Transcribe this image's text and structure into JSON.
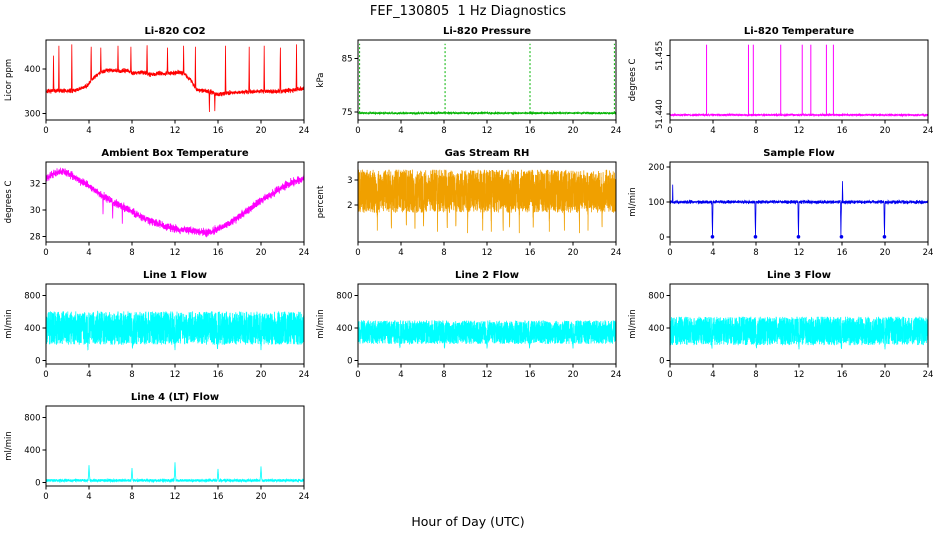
{
  "page_title": "FEF_130805  1 Hz Diagnostics",
  "x_axis_label": "Hour of Day (UTC)",
  "chart_data": [
    {
      "type": "line",
      "title": "Li-820 CO2",
      "ylabel": "Licor ppm",
      "color": "#FF0000",
      "xlim": [
        0,
        24
      ],
      "xticks": [
        0,
        4,
        8,
        12,
        16,
        20,
        24
      ],
      "ylim": [
        285,
        465
      ],
      "yticks": [
        300,
        400
      ],
      "ytick_labels": [
        "300",
        "400"
      ],
      "ytick_rotated": false,
      "model": {
        "kind": "noisy",
        "n": 2400,
        "noise": 7,
        "noise_kind": "gauss",
        "keypoints": [
          [
            0,
            349
          ],
          [
            1,
            351
          ],
          [
            2,
            350
          ],
          [
            3,
            353
          ],
          [
            3.8,
            362
          ],
          [
            4.5,
            382
          ],
          [
            5,
            391
          ],
          [
            5.5,
            396
          ],
          [
            6,
            398
          ],
          [
            7,
            394
          ],
          [
            7.5,
            398
          ],
          [
            8,
            391
          ],
          [
            9,
            392
          ],
          [
            10,
            387
          ],
          [
            10.5,
            391
          ],
          [
            11,
            389
          ],
          [
            12,
            391
          ],
          [
            12.5,
            393
          ],
          [
            13,
            386
          ],
          [
            13.5,
            374
          ],
          [
            14,
            353
          ],
          [
            15,
            350
          ],
          [
            15.5,
            347
          ],
          [
            16,
            343
          ],
          [
            17,
            346
          ],
          [
            18,
            347
          ],
          [
            19,
            349
          ],
          [
            20,
            350
          ],
          [
            21,
            349
          ],
          [
            22,
            350
          ],
          [
            23,
            352
          ],
          [
            24,
            356
          ]
        ],
        "spikes": [
          {
            "x": 0.7,
            "y": 430,
            "w": 0.04
          },
          {
            "x": 1.2,
            "y": 452,
            "w": 0.04
          },
          {
            "x": 2.4,
            "y": 455,
            "w": 0.04
          },
          {
            "x": 4.2,
            "y": 450,
            "w": 0.04
          },
          {
            "x": 5.1,
            "y": 448,
            "w": 0.04
          },
          {
            "x": 6.7,
            "y": 452,
            "w": 0.04
          },
          {
            "x": 7.9,
            "y": 450,
            "w": 0.04
          },
          {
            "x": 9.4,
            "y": 453,
            "w": 0.04
          },
          {
            "x": 11.3,
            "y": 448,
            "w": 0.04
          },
          {
            "x": 12.8,
            "y": 452,
            "w": 0.04
          },
          {
            "x": 13.9,
            "y": 450,
            "w": 0.04
          },
          {
            "x": 15.2,
            "y": 303,
            "w": 0.04
          },
          {
            "x": 15.7,
            "y": 305,
            "w": 0.04
          },
          {
            "x": 16.7,
            "y": 452,
            "w": 0.04
          },
          {
            "x": 18.9,
            "y": 450,
            "w": 0.04
          },
          {
            "x": 20.3,
            "y": 452,
            "w": 0.04
          },
          {
            "x": 21.8,
            "y": 448,
            "w": 0.04
          },
          {
            "x": 23.3,
            "y": 455,
            "w": 0.04
          }
        ]
      }
    },
    {
      "type": "line",
      "title": "Li-820 Pressure",
      "ylabel": "kPa",
      "color": "#00B400",
      "xlim": [
        0,
        24
      ],
      "xticks": [
        0,
        4,
        8,
        12,
        16,
        20,
        24
      ],
      "ylim": [
        73.5,
        88.5
      ],
      "yticks": [
        75,
        85
      ],
      "ytick_labels": [
        "75",
        "85"
      ],
      "ytick_rotated": false,
      "model": {
        "kind": "flat-spikes",
        "n": 2400,
        "baseline": 74.8,
        "noise": 0.25,
        "dash": true,
        "spike_lines": [
          {
            "x": 0.15,
            "y": 87.8
          },
          {
            "x": 8.1,
            "y": 87.8
          },
          {
            "x": 16.0,
            "y": 87.8
          },
          {
            "x": 23.85,
            "y": 87.8
          }
        ]
      }
    },
    {
      "type": "line",
      "title": "Li-820 Temperature",
      "ylabel": "degrees C",
      "color": "#FF00FF",
      "xlim": [
        0,
        24
      ],
      "xticks": [
        0,
        4,
        8,
        12,
        16,
        20,
        24
      ],
      "ylim": [
        51.4385,
        51.459
      ],
      "yticks": [
        51.44,
        51.455
      ],
      "ytick_labels": [
        "51.440",
        "51.455"
      ],
      "ytick_rotated": true,
      "model": {
        "kind": "flat-spikes",
        "n": 2400,
        "baseline": 51.4398,
        "noise": 0.0004,
        "dash": false,
        "spike_lines": [
          {
            "x": 3.4,
            "y": 51.4578
          },
          {
            "x": 7.3,
            "y": 51.4578
          },
          {
            "x": 7.75,
            "y": 51.4578
          },
          {
            "x": 10.3,
            "y": 51.4578
          },
          {
            "x": 12.3,
            "y": 51.4578
          },
          {
            "x": 13.1,
            "y": 51.4578
          },
          {
            "x": 14.55,
            "y": 51.4578
          },
          {
            "x": 15.2,
            "y": 51.4578
          }
        ]
      }
    },
    {
      "type": "line",
      "title": "Ambient Box Temperature",
      "ylabel": "degrees C",
      "color": "#FF00FF",
      "xlim": [
        0,
        24
      ],
      "xticks": [
        0,
        4,
        8,
        12,
        16,
        20,
        24
      ],
      "ylim": [
        27.6,
        33.6
      ],
      "yticks": [
        28,
        30,
        32
      ],
      "ytick_labels": [
        "28",
        "30",
        "32"
      ],
      "ytick_rotated": false,
      "model": {
        "kind": "noisy",
        "n": 2600,
        "noise": 0.42,
        "noise_kind": "gauss",
        "keypoints": [
          [
            0,
            32.3
          ],
          [
            0.5,
            32.6
          ],
          [
            1,
            32.8
          ],
          [
            1.5,
            32.9
          ],
          [
            2,
            32.8
          ],
          [
            3,
            32.3
          ],
          [
            4,
            31.8
          ],
          [
            5,
            31.2
          ],
          [
            6,
            30.7
          ],
          [
            7,
            30.3
          ],
          [
            8,
            29.9
          ],
          [
            9,
            29.4
          ],
          [
            10,
            29.1
          ],
          [
            11,
            28.8
          ],
          [
            12,
            28.6
          ],
          [
            13,
            28.5
          ],
          [
            14,
            28.4
          ],
          [
            15,
            28.3
          ],
          [
            15.5,
            28.4
          ],
          [
            16,
            28.6
          ],
          [
            17,
            29.0
          ],
          [
            18,
            29.5
          ],
          [
            19,
            30.1
          ],
          [
            20,
            30.7
          ],
          [
            21,
            31.2
          ],
          [
            22,
            31.7
          ],
          [
            23,
            32.1
          ],
          [
            24,
            32.4
          ]
        ],
        "spikes": [
          {
            "x": 5.3,
            "y": 29.6,
            "w": 0.03
          },
          {
            "x": 6.2,
            "y": 29.2,
            "w": 0.03
          },
          {
            "x": 7.1,
            "y": 28.9,
            "w": 0.03
          }
        ]
      }
    },
    {
      "type": "line",
      "title": "Gas Stream RH",
      "ylabel": "percent",
      "color": "#F0A000",
      "xlim": [
        0,
        24
      ],
      "xticks": [
        0,
        4,
        8,
        12,
        16,
        20,
        24
      ],
      "ylim": [
        0.55,
        3.7
      ],
      "yticks": [
        2,
        3
      ],
      "ytick_labels": [
        "2",
        "3"
      ],
      "ytick_rotated": false,
      "model": {
        "kind": "noisy",
        "n": 3000,
        "noise": 0.85,
        "noise_kind": "uniform",
        "keypoints": [
          [
            0,
            2.55
          ],
          [
            24,
            2.55
          ]
        ],
        "spikes": [
          {
            "x": 1.8,
            "y": 1.0,
            "w": 0.03
          },
          {
            "x": 3.1,
            "y": 0.95,
            "w": 0.03
          },
          {
            "x": 4.5,
            "y": 1.0,
            "w": 0.03
          },
          {
            "x": 5.3,
            "y": 0.9,
            "w": 0.03
          },
          {
            "x": 6.1,
            "y": 1.0,
            "w": 0.03
          },
          {
            "x": 7.4,
            "y": 0.95,
            "w": 0.03
          },
          {
            "x": 8.3,
            "y": 0.85,
            "w": 0.03
          },
          {
            "x": 9.1,
            "y": 1.0,
            "w": 0.03
          },
          {
            "x": 10.2,
            "y": 0.9,
            "w": 0.03
          },
          {
            "x": 11.6,
            "y": 1.0,
            "w": 0.03
          },
          {
            "x": 12.4,
            "y": 0.95,
            "w": 0.03
          },
          {
            "x": 13.5,
            "y": 0.85,
            "w": 0.03
          },
          {
            "x": 14.1,
            "y": 1.0,
            "w": 0.03
          },
          {
            "x": 15.0,
            "y": 0.9,
            "w": 0.03
          },
          {
            "x": 16.3,
            "y": 1.0,
            "w": 0.03
          },
          {
            "x": 17.8,
            "y": 0.95,
            "w": 0.03
          },
          {
            "x": 19.2,
            "y": 1.0,
            "w": 0.03
          },
          {
            "x": 20.6,
            "y": 0.9,
            "w": 0.03
          },
          {
            "x": 21.4,
            "y": 1.0,
            "w": 0.03
          },
          {
            "x": 22.7,
            "y": 0.95,
            "w": 0.03
          }
        ]
      }
    },
    {
      "type": "line",
      "title": "Sample Flow",
      "ylabel": "ml/min",
      "color": "#0000EE",
      "xlim": [
        0,
        24
      ],
      "xticks": [
        0,
        4,
        8,
        12,
        16,
        20,
        24
      ],
      "ylim": [
        -15,
        215
      ],
      "yticks": [
        0,
        100,
        200
      ],
      "ytick_labels": [
        "0",
        "100",
        "200"
      ],
      "ytick_rotated": false,
      "model": {
        "kind": "noisy",
        "n": 2400,
        "noise": 7,
        "noise_kind": "gauss",
        "keypoints": [
          [
            0,
            100
          ],
          [
            24,
            100
          ]
        ],
        "spikes": [
          {
            "x": 0.25,
            "y": 150,
            "w": 0.03
          },
          {
            "x": 3.95,
            "y": -2,
            "w": 0.05
          },
          {
            "x": 7.95,
            "y": -2,
            "w": 0.05
          },
          {
            "x": 11.95,
            "y": -2,
            "w": 0.05
          },
          {
            "x": 15.9,
            "y": -2,
            "w": 0.05
          },
          {
            "x": 16.05,
            "y": 160,
            "w": 0.03
          },
          {
            "x": 19.95,
            "y": -2,
            "w": 0.05
          }
        ],
        "zero_markers": [
          3.95,
          7.95,
          11.95,
          15.95,
          19.95
        ]
      }
    },
    {
      "type": "line",
      "title": "Line 1 Flow",
      "ylabel": "ml/min",
      "color": "#00FFFF",
      "xlim": [
        0,
        24
      ],
      "xticks": [
        0,
        4,
        8,
        12,
        16,
        20,
        24
      ],
      "ylim": [
        -40,
        940
      ],
      "yticks": [
        0,
        400,
        800
      ],
      "ytick_labels": [
        "0",
        "400",
        "800"
      ],
      "ytick_rotated": false,
      "model": {
        "kind": "noisy",
        "n": 3000,
        "noise": 205,
        "noise_kind": "uniform",
        "keypoints": [
          [
            0,
            400
          ],
          [
            24,
            400
          ]
        ],
        "spikes": [
          {
            "x": 3.9,
            "y": 130,
            "w": 0.06
          },
          {
            "x": 8.05,
            "y": 140,
            "w": 0.06
          },
          {
            "x": 12.0,
            "y": 130,
            "w": 0.06
          },
          {
            "x": 15.95,
            "y": 140,
            "w": 0.06
          },
          {
            "x": 20.0,
            "y": 130,
            "w": 0.06
          }
        ]
      }
    },
    {
      "type": "line",
      "title": "Line 2 Flow",
      "ylabel": "ml/min",
      "color": "#00FFFF",
      "xlim": [
        0,
        24
      ],
      "xticks": [
        0,
        4,
        8,
        12,
        16,
        20,
        24
      ],
      "ylim": [
        -40,
        940
      ],
      "yticks": [
        0,
        400,
        800
      ],
      "ytick_labels": [
        "0",
        "400",
        "800"
      ],
      "ytick_rotated": false,
      "model": {
        "kind": "noisy",
        "n": 3000,
        "noise": 145,
        "noise_kind": "uniform",
        "keypoints": [
          [
            0,
            350
          ],
          [
            24,
            350
          ]
        ],
        "spikes": [
          {
            "x": 3.9,
            "y": 150,
            "w": 0.06
          },
          {
            "x": 8.05,
            "y": 150,
            "w": 0.06
          },
          {
            "x": 12.0,
            "y": 150,
            "w": 0.06
          },
          {
            "x": 15.95,
            "y": 150,
            "w": 0.06
          },
          {
            "x": 20.0,
            "y": 150,
            "w": 0.06
          }
        ]
      }
    },
    {
      "type": "line",
      "title": "Line 3 Flow",
      "ylabel": "ml/min",
      "color": "#00FFFF",
      "xlim": [
        0,
        24
      ],
      "xticks": [
        0,
        4,
        8,
        12,
        16,
        20,
        24
      ],
      "ylim": [
        -40,
        940
      ],
      "yticks": [
        0,
        400,
        800
      ],
      "ytick_labels": [
        "0",
        "400",
        "800"
      ],
      "ytick_rotated": false,
      "model": {
        "kind": "noisy",
        "n": 3000,
        "noise": 175,
        "noise_kind": "uniform",
        "keypoints": [
          [
            0,
            365
          ],
          [
            24,
            365
          ]
        ],
        "spikes": [
          {
            "x": 3.9,
            "y": 140,
            "w": 0.06
          },
          {
            "x": 8.05,
            "y": 140,
            "w": 0.06
          },
          {
            "x": 12.0,
            "y": 140,
            "w": 0.06
          },
          {
            "x": 15.95,
            "y": 140,
            "w": 0.06
          },
          {
            "x": 20.0,
            "y": 140,
            "w": 0.06
          }
        ]
      }
    },
    {
      "type": "line",
      "title": "Line 4 (LT) Flow",
      "ylabel": "ml/min",
      "color": "#00FFFF",
      "xlim": [
        0,
        24
      ],
      "xticks": [
        0,
        4,
        8,
        12,
        16,
        20,
        24
      ],
      "ylim": [
        -40,
        940
      ],
      "yticks": [
        0,
        400,
        800
      ],
      "ytick_labels": [
        "0",
        "400",
        "800"
      ],
      "ytick_rotated": false,
      "model": {
        "kind": "noisy",
        "n": 2400,
        "noise": 16,
        "noise_kind": "uniform",
        "keypoints": [
          [
            0,
            28
          ],
          [
            24,
            28
          ]
        ],
        "spikes": [
          {
            "x": 4.0,
            "y": 215,
            "w": 0.08
          },
          {
            "x": 8.0,
            "y": 180,
            "w": 0.08
          },
          {
            "x": 12.0,
            "y": 250,
            "w": 0.08
          },
          {
            "x": 16.0,
            "y": 170,
            "w": 0.08
          },
          {
            "x": 20.0,
            "y": 200,
            "w": 0.08
          }
        ]
      }
    }
  ]
}
